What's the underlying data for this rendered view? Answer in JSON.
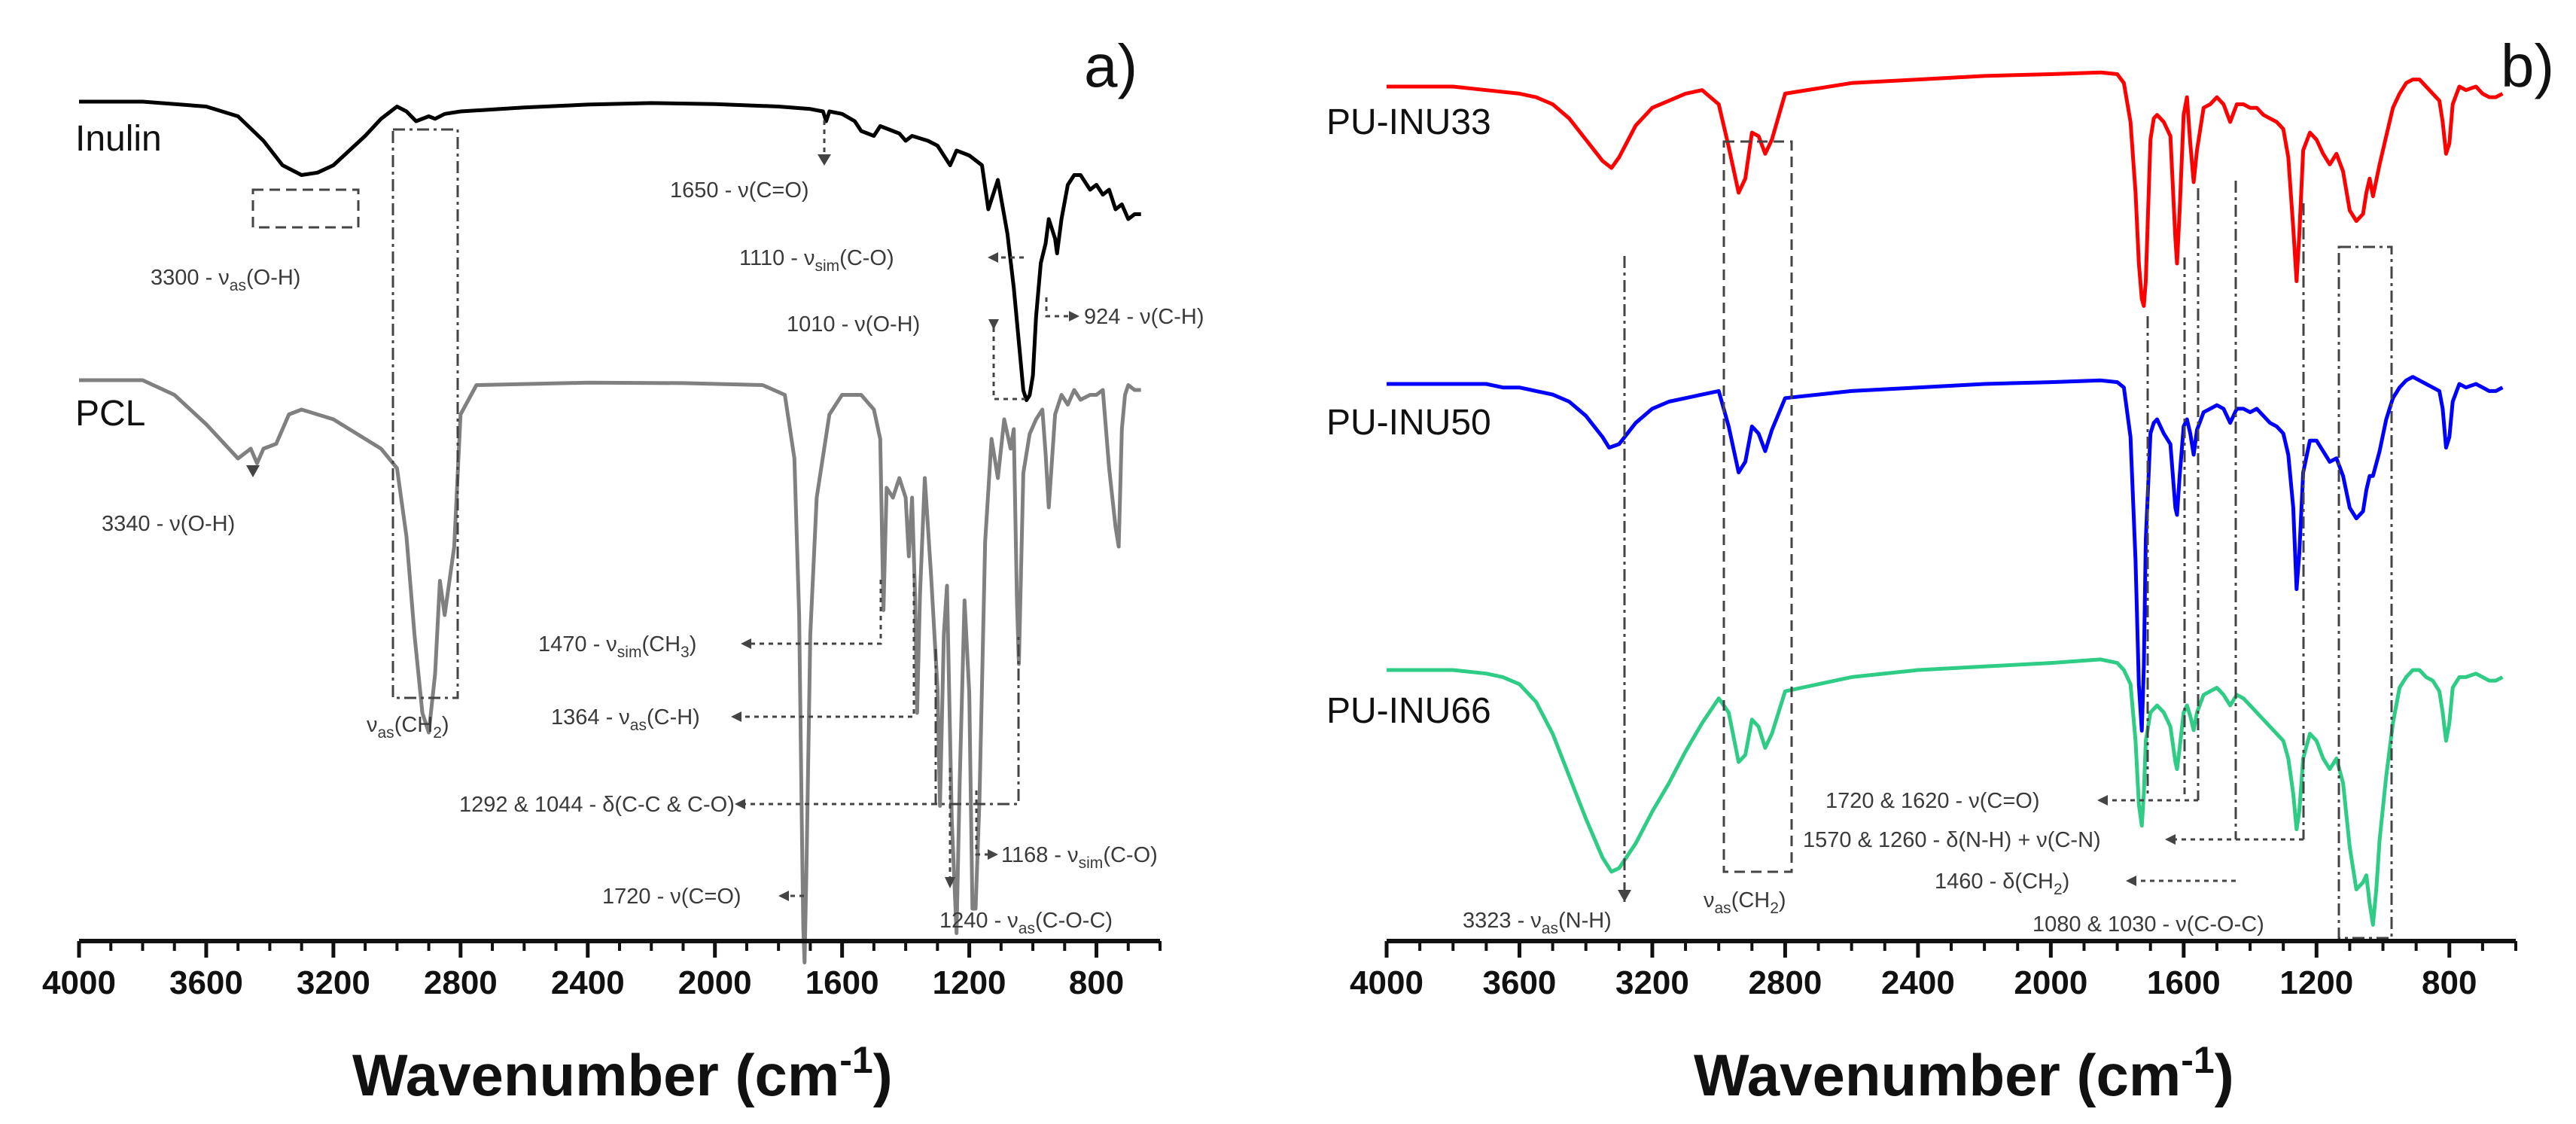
{
  "chart_data": [
    {
      "type": "line",
      "panel_label": "a)",
      "xlabel": "Wavenumber (cm-1)",
      "xlabel_main": "Wavenumber (cm",
      "xlabel_sup": "-1",
      "xlabel_close": ")",
      "xlim": [
        4000,
        600
      ],
      "xticks": [
        "4000",
        "3600",
        "3200",
        "2800",
        "2400",
        "2000",
        "1600",
        "1200",
        "800"
      ],
      "series": [
        {
          "name": "Inulin",
          "color": "#000000",
          "x": [
            4000,
            3800,
            3600,
            3500,
            3420,
            3360,
            3300,
            3250,
            3200,
            3150,
            3100,
            3050,
            3000,
            2970,
            2940,
            2900,
            2880,
            2850,
            2800,
            2600,
            2400,
            2200,
            2000,
            1800,
            1700,
            1660,
            1650,
            1640,
            1600,
            1560,
            1540,
            1500,
            1480,
            1440,
            1420,
            1400,
            1380,
            1330,
            1300,
            1260,
            1240,
            1200,
            1160,
            1140,
            1110,
            1080,
            1060,
            1040,
            1030,
            1020,
            1010,
            1000,
            990,
            975,
            960,
            950,
            930,
            924,
            910,
            890,
            870,
            850,
            820,
            800,
            780,
            760,
            740,
            720,
            700,
            680,
            660
          ],
          "y": [
            0,
            0,
            -1,
            -3,
            -8,
            -13,
            -15,
            -14.5,
            -13,
            -10,
            -7,
            -3.5,
            -1,
            -2,
            -4,
            -3,
            -3.5,
            -2.5,
            -2,
            -1.2,
            -0.6,
            -0.3,
            -0.5,
            -1,
            -1.5,
            -2,
            -4,
            -2,
            -2.5,
            -4,
            -6,
            -7,
            -5,
            -6,
            -6.5,
            -8,
            -7,
            -8,
            -9,
            -13,
            -10,
            -11,
            -13,
            -22,
            -16,
            -27,
            -38,
            -52,
            -59,
            -61,
            -60,
            -56,
            -44,
            -33,
            -29,
            -24,
            -28,
            -31,
            -24,
            -17,
            -15,
            -15,
            -18,
            -17,
            -19,
            -18,
            -22,
            -21,
            -24,
            -23,
            -23
          ]
        },
        {
          "name": "PCL",
          "color": "#808080",
          "x": [
            4000,
            3800,
            3700,
            3600,
            3500,
            3460,
            3440,
            3420,
            3380,
            3340,
            3300,
            3250,
            3200,
            3150,
            3100,
            3050,
            3000,
            2970,
            2945,
            2920,
            2900,
            2880,
            2865,
            2850,
            2820,
            2800,
            2750,
            2400,
            2100,
            1850,
            1780,
            1750,
            1735,
            1727,
            1722,
            1718,
            1712,
            1700,
            1680,
            1640,
            1600,
            1540,
            1500,
            1480,
            1470,
            1460,
            1440,
            1420,
            1400,
            1390,
            1380,
            1370,
            1364,
            1355,
            1340,
            1320,
            1300,
            1292,
            1280,
            1270,
            1255,
            1240,
            1230,
            1215,
            1200,
            1190,
            1180,
            1168,
            1150,
            1130,
            1110,
            1090,
            1070,
            1060,
            1050,
            1044,
            1030,
            1010,
            990,
            970,
            960,
            950,
            930,
            910,
            890,
            870,
            850,
            820,
            800,
            780,
            760,
            740,
            730,
            720,
            710,
            700,
            680,
            660
          ],
          "y": [
            0,
            0,
            -3,
            -9,
            -16,
            -14,
            -17,
            -14,
            -13,
            -7,
            -6,
            -7,
            -8,
            -10,
            -12,
            -14,
            -18,
            -32,
            -52,
            -68,
            -72,
            -60,
            -41,
            -48,
            -34,
            -7,
            -1,
            -0.5,
            -0.6,
            -1,
            -3,
            -16,
            -48,
            -89,
            -112,
            -119,
            -100,
            -52,
            -24,
            -7,
            -3,
            -3,
            -6,
            -12,
            -47,
            -22,
            -24,
            -20,
            -24,
            -36,
            -24,
            -45,
            -68,
            -44,
            -20,
            -40,
            -63,
            -87,
            -52,
            -42,
            -90,
            -113,
            -82,
            -45,
            -64,
            -108,
            -108,
            -86,
            -33,
            -12,
            -20,
            -8,
            -14,
            -10,
            -45,
            -58,
            -19,
            -11,
            -8,
            -6,
            -15,
            -26,
            -7,
            -3,
            -5,
            -2,
            -4,
            -3,
            -3,
            -2,
            -18,
            -30,
            -34,
            -10,
            -3,
            -1,
            -2,
            -2
          ]
        }
      ],
      "annotations": [
        {
          "text": "3300 - ν",
          "sub": "as",
          "post": "(O-H)"
        },
        {
          "text": "1650 - ν(C=O)"
        },
        {
          "text": "1110 - ν",
          "sub": "sim",
          "post": "(C-O)"
        },
        {
          "text": "1010 - ν(O-H)"
        },
        {
          "text": "924 - ν(C-H)"
        },
        {
          "text": "3340 - ν(O-H)"
        },
        {
          "text": "1470 - ν",
          "sub": "sim",
          "post": "(CH",
          "sub2": "3",
          "post2": ")"
        },
        {
          "text": "1364 - ν",
          "sub": "as",
          "post": "(C-H)"
        },
        {
          "text": "1292 & 1044 - δ(C-C & C-O)"
        },
        {
          "text": "1168 - ν",
          "sub": "sim",
          "post": "(C-O)"
        },
        {
          "text": "1720 - ν(C=O)"
        },
        {
          "text": "1240 - ν",
          "sub": "as",
          "post": "(C-O-C)"
        },
        {
          "text": "ν",
          "sub": "as",
          "post": "(CH",
          "sub2": "2",
          "post2": ")"
        }
      ]
    },
    {
      "type": "line",
      "panel_label": "b)",
      "xlabel": "Wavenumber (cm-1)",
      "xlabel_main": "Wavenumber (cm",
      "xlabel_sup": "-1",
      "xlabel_close": ")",
      "xlim": [
        4000,
        600
      ],
      "xticks": [
        "4000",
        "3600",
        "3200",
        "2800",
        "2400",
        "2000",
        "1600",
        "1200",
        "800"
      ],
      "series": [
        {
          "name": "PU-INU33",
          "color": "#ff0000",
          "x": [
            4000,
            3900,
            3800,
            3700,
            3600,
            3550,
            3500,
            3450,
            3400,
            3350,
            3323,
            3300,
            3250,
            3200,
            3150,
            3100,
            3050,
            3000,
            2970,
            2940,
            2920,
            2900,
            2880,
            2860,
            2840,
            2800,
            2600,
            2400,
            2200,
            2000,
            1850,
            1800,
            1780,
            1760,
            1745,
            1735,
            1726,
            1720,
            1714,
            1700,
            1690,
            1680,
            1660,
            1640,
            1625,
            1620,
            1612,
            1600,
            1590,
            1580,
            1570,
            1560,
            1540,
            1520,
            1500,
            1480,
            1460,
            1440,
            1420,
            1400,
            1380,
            1360,
            1340,
            1320,
            1300,
            1285,
            1270,
            1260,
            1252,
            1240,
            1220,
            1200,
            1180,
            1160,
            1140,
            1120,
            1100,
            1080,
            1060,
            1050,
            1040,
            1030,
            1010,
            990,
            970,
            950,
            930,
            910,
            890,
            870,
            850,
            830,
            820,
            810,
            800,
            790,
            770,
            750,
            720,
            700,
            680,
            660,
            640
          ],
          "y": [
            0,
            0,
            0,
            -1,
            -2,
            -3,
            -5,
            -9,
            -15,
            -21,
            -23,
            -20,
            -11,
            -6,
            -4,
            -2,
            -1,
            -5,
            -17,
            -30,
            -26,
            -13,
            -14,
            -19,
            -15,
            -2,
            1,
            2,
            3,
            3.5,
            4,
            3.5,
            1,
            -10,
            -30,
            -50,
            -60,
            -62,
            -55,
            -15,
            -9,
            -8,
            -10,
            -14,
            -43,
            -50,
            -35,
            -8,
            -3,
            -16,
            -27,
            -18,
            -6,
            -5,
            -3,
            -5,
            -10,
            -5,
            -5,
            -6,
            -6,
            -8,
            -9,
            -10,
            -12,
            -20,
            -40,
            -55,
            -42,
            -18,
            -13,
            -15,
            -19,
            -22,
            -19,
            -24,
            -35,
            -38,
            -36,
            -30,
            -26,
            -31,
            -22,
            -14,
            -6,
            -2,
            1,
            2,
            2,
            0,
            -2,
            -4,
            -10,
            -19,
            -16,
            -5,
            0,
            -1,
            0,
            -2,
            -3,
            -3,
            -2
          ]
        },
        {
          "name": "PU-INU50",
          "color": "#0000ff",
          "x": [
            4000,
            3900,
            3800,
            3700,
            3650,
            3600,
            3550,
            3500,
            3450,
            3400,
            3350,
            3330,
            3300,
            3250,
            3200,
            3150,
            3100,
            3050,
            3000,
            2970,
            2940,
            2920,
            2900,
            2880,
            2860,
            2840,
            2800,
            2600,
            2400,
            2200,
            2000,
            1850,
            1800,
            1780,
            1760,
            1745,
            1735,
            1726,
            1720,
            1714,
            1700,
            1690,
            1680,
            1660,
            1640,
            1625,
            1620,
            1612,
            1600,
            1590,
            1580,
            1570,
            1560,
            1540,
            1520,
            1500,
            1480,
            1460,
            1440,
            1420,
            1400,
            1380,
            1360,
            1340,
            1320,
            1300,
            1285,
            1270,
            1260,
            1252,
            1240,
            1220,
            1200,
            1180,
            1160,
            1140,
            1120,
            1100,
            1080,
            1060,
            1050,
            1040,
            1030,
            1010,
            990,
            970,
            950,
            930,
            910,
            890,
            870,
            850,
            830,
            820,
            810,
            800,
            790,
            770,
            750,
            720,
            700,
            680,
            660,
            640
          ],
          "y": [
            0,
            0,
            0,
            0,
            -1,
            -1,
            -2,
            -3,
            -5,
            -9,
            -15,
            -18,
            -17,
            -11,
            -7,
            -5,
            -4,
            -3,
            -2,
            -12,
            -25,
            -22,
            -12,
            -14,
            -19,
            -13,
            -4,
            -2,
            -1,
            0,
            0.5,
            1,
            0.5,
            -1,
            -15,
            -50,
            -85,
            -98,
            -80,
            -44,
            -14,
            -11,
            -10,
            -14,
            -17,
            -35,
            -37,
            -26,
            -12,
            -10,
            -14,
            -20,
            -13,
            -8,
            -7,
            -6,
            -7,
            -11,
            -7,
            -7,
            -8,
            -7,
            -9,
            -11,
            -12,
            -14,
            -20,
            -35,
            -58,
            -48,
            -25,
            -16,
            -16,
            -19,
            -22,
            -21,
            -26,
            -35,
            -38,
            -36,
            -30,
            -26,
            -26,
            -19,
            -10,
            -4,
            -1,
            1,
            2,
            1,
            0,
            -1,
            -2,
            -7,
            -18,
            -15,
            -5,
            0,
            -1,
            0,
            -1,
            -2,
            -2,
            -1
          ]
        },
        {
          "name": "PU-INU66",
          "color": "#2ecc84",
          "x": [
            4000,
            3900,
            3800,
            3700,
            3650,
            3600,
            3550,
            3500,
            3450,
            3400,
            3350,
            3323,
            3300,
            3250,
            3200,
            3150,
            3100,
            3050,
            3000,
            2970,
            2940,
            2920,
            2900,
            2880,
            2860,
            2840,
            2800,
            2600,
            2400,
            2200,
            2000,
            1850,
            1800,
            1780,
            1760,
            1745,
            1735,
            1726,
            1720,
            1714,
            1700,
            1690,
            1680,
            1660,
            1640,
            1625,
            1620,
            1612,
            1600,
            1590,
            1580,
            1570,
            1560,
            1540,
            1520,
            1500,
            1480,
            1460,
            1440,
            1420,
            1400,
            1380,
            1360,
            1340,
            1320,
            1300,
            1285,
            1270,
            1260,
            1252,
            1240,
            1220,
            1200,
            1180,
            1160,
            1140,
            1120,
            1100,
            1080,
            1060,
            1050,
            1040,
            1030,
            1020,
            1010,
            990,
            970,
            950,
            930,
            910,
            890,
            870,
            850,
            830,
            820,
            810,
            800,
            790,
            770,
            750,
            720,
            700,
            680,
            660,
            640
          ],
          "y": [
            0,
            0,
            0,
            -1,
            -2,
            -4,
            -9,
            -18,
            -30,
            -42,
            -53,
            -57,
            -56,
            -49,
            -40,
            -32,
            -23,
            -15,
            -8,
            -12,
            -26,
            -24,
            -14,
            -16,
            -22,
            -18,
            -6,
            -2,
            0,
            1,
            2,
            3,
            2,
            0,
            -4,
            -20,
            -38,
            -44,
            -35,
            -20,
            -12,
            -11,
            -10,
            -12,
            -16,
            -26,
            -28,
            -22,
            -12,
            -10,
            -13,
            -17,
            -12,
            -7,
            -6,
            -5,
            -7,
            -10,
            -7,
            -8,
            -10,
            -12,
            -14,
            -16,
            -18,
            -20,
            -25,
            -35,
            -45,
            -40,
            -25,
            -18,
            -20,
            -25,
            -28,
            -25,
            -32,
            -50,
            -62,
            -60,
            -58,
            -66,
            -72,
            -62,
            -48,
            -30,
            -15,
            -5,
            -2,
            0,
            0,
            -2,
            -3,
            -6,
            -12,
            -20,
            -15,
            -5,
            -2,
            -2,
            -1,
            -2,
            -3,
            -3,
            -2
          ]
        }
      ],
      "annotations": [
        {
          "text": "3323 - ν",
          "sub": "as",
          "post": "(N-H)"
        },
        {
          "text": "ν",
          "sub": "as",
          "post": "(CH",
          "sub2": "2",
          "post2": ")"
        },
        {
          "text": "1720 & 1620 - ν(C=O)"
        },
        {
          "text": "1570 & 1260 - δ(N-H) + ν(C-N)"
        },
        {
          "text": "1460 - δ(CH",
          "sub": "2",
          "post": ")"
        },
        {
          "text": "1080 & 1030 - ν(C-O-C)"
        }
      ]
    }
  ]
}
